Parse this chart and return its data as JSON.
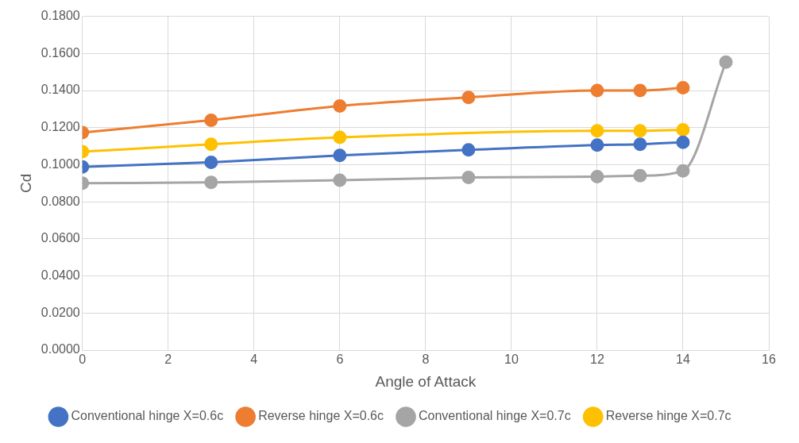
{
  "chart_data": {
    "type": "line",
    "xlabel": "Angle of Attack",
    "ylabel": "Cd",
    "xlim": [
      0,
      16
    ],
    "xticks": [
      0,
      2,
      4,
      6,
      8,
      10,
      12,
      14,
      16
    ],
    "ylim": [
      0,
      0.18
    ],
    "yticks": [
      {
        "value": 0,
        "label": "0.0000"
      },
      {
        "value": 0.02,
        "label": "0.0200"
      },
      {
        "value": 0.04,
        "label": "0.0400"
      },
      {
        "value": 0.06,
        "label": "0.0600"
      },
      {
        "value": 0.08,
        "label": "0.0800"
      },
      {
        "value": 0.1,
        "label": "0.1000"
      },
      {
        "value": 0.12,
        "label": "0.1200"
      },
      {
        "value": 0.14,
        "label": "0.1400"
      },
      {
        "value": 0.16,
        "label": "0.1600"
      },
      {
        "value": 0.18,
        "label": "0.1800"
      }
    ],
    "grid": true,
    "legend": "bottom",
    "marker": "circle",
    "line_style": "solid",
    "series": [
      {
        "name": "Conventional hinge X=0.6c",
        "color": "#4472c4",
        "x": [
          0,
          3,
          6,
          9,
          12,
          13,
          14
        ],
        "values": [
          0.0988,
          0.1013,
          0.105,
          0.108,
          0.1106,
          0.111,
          0.1121
        ]
      },
      {
        "name": "Reverse hinge X=0.6c",
        "color": "#ed7d31",
        "x": [
          0,
          3,
          6,
          9,
          12,
          13,
          14
        ],
        "values": [
          0.1173,
          0.124,
          0.1317,
          0.1363,
          0.14,
          0.14,
          0.1415
        ]
      },
      {
        "name": "Conventional hinge X=0.7c",
        "color": "#a5a5a5",
        "x": [
          0,
          3,
          6,
          9,
          12,
          13,
          14,
          15
        ],
        "values": [
          0.09,
          0.0905,
          0.0916,
          0.0931,
          0.0936,
          0.0941,
          0.0967,
          0.1553
        ]
      },
      {
        "name": "Reverse hinge X=0.7c",
        "color": "#ffc000",
        "x": [
          0,
          3,
          6,
          12,
          13,
          14
        ],
        "values": [
          0.107,
          0.111,
          0.1147,
          0.1183,
          0.1183,
          0.1188
        ]
      }
    ]
  }
}
